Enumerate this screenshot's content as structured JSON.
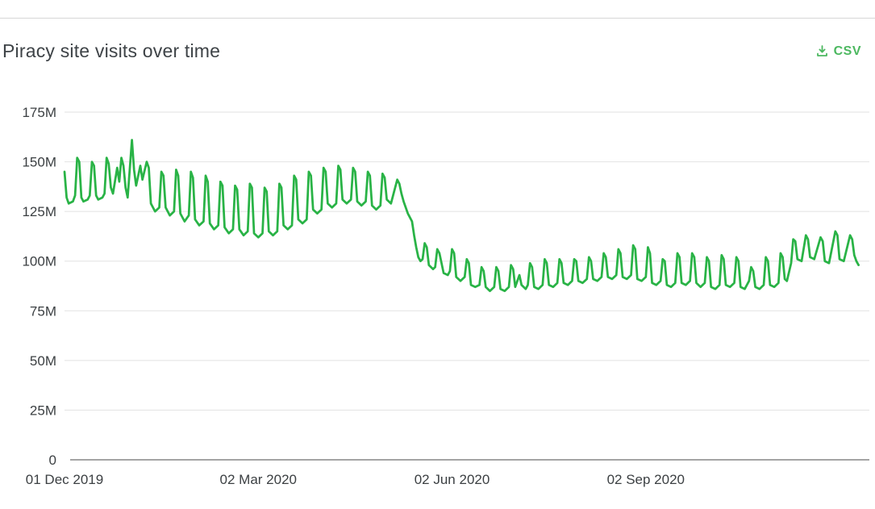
{
  "header": {
    "title": "Piracy site visits over time",
    "csv_label": "CSV",
    "csv_icon": "download-icon"
  },
  "colors": {
    "line": "#29b346",
    "csv_link": "#4cb860",
    "grid": "#e2e2e2",
    "axis": "#4a4a4a",
    "tick_text": "#3c4043",
    "title_text": "#3e4347",
    "top_border": "#d6d6d6",
    "background": "#ffffff"
  },
  "chart_data": {
    "type": "line",
    "title": "Piracy site visits over time",
    "xlabel": "",
    "ylabel": "",
    "value_unit": "millions of visits",
    "x_unit": "days since 01 Dec 2019",
    "ylim": [
      0,
      175
    ],
    "xlim_days": [
      0,
      381
    ],
    "grid": true,
    "legend": "none",
    "yticks": [
      {
        "value": 0,
        "label": "0"
      },
      {
        "value": 25,
        "label": "25M"
      },
      {
        "value": 50,
        "label": "50M"
      },
      {
        "value": 75,
        "label": "75M"
      },
      {
        "value": 100,
        "label": "100M"
      },
      {
        "value": 125,
        "label": "125M"
      },
      {
        "value": 150,
        "label": "150M"
      },
      {
        "value": 175,
        "label": "175M"
      }
    ],
    "xticks": [
      {
        "day": 0,
        "label": "01 Dec 2019"
      },
      {
        "day": 92,
        "label": "02 Mar 2020"
      },
      {
        "day": 184,
        "label": "02 Jun 2020"
      },
      {
        "day": 276,
        "label": "02 Sep 2020"
      }
    ],
    "series": [
      {
        "name": "Piracy site visits",
        "color": "#29b346",
        "points": [
          [
            0,
            145
          ],
          [
            1,
            132
          ],
          [
            2,
            129
          ],
          [
            4,
            130
          ],
          [
            5,
            133
          ],
          [
            6,
            152
          ],
          [
            7,
            150
          ],
          [
            8,
            132
          ],
          [
            9,
            130
          ],
          [
            11,
            131
          ],
          [
            12,
            133
          ],
          [
            13,
            150
          ],
          [
            14,
            148
          ],
          [
            15,
            133
          ],
          [
            16,
            131
          ],
          [
            18,
            132
          ],
          [
            19,
            134
          ],
          [
            20,
            152
          ],
          [
            21,
            149
          ],
          [
            22,
            137
          ],
          [
            23,
            134
          ],
          [
            25,
            147
          ],
          [
            26,
            140
          ],
          [
            27,
            152
          ],
          [
            28,
            148
          ],
          [
            29,
            137
          ],
          [
            30,
            132
          ],
          [
            32,
            161
          ],
          [
            33,
            146
          ],
          [
            34,
            138
          ],
          [
            36,
            148
          ],
          [
            37,
            141
          ],
          [
            39,
            150
          ],
          [
            40,
            147
          ],
          [
            41,
            129
          ],
          [
            43,
            125
          ],
          [
            45,
            127
          ],
          [
            46,
            145
          ],
          [
            47,
            143
          ],
          [
            48,
            127
          ],
          [
            50,
            123
          ],
          [
            52,
            125
          ],
          [
            53,
            146
          ],
          [
            54,
            143
          ],
          [
            55,
            124
          ],
          [
            57,
            120
          ],
          [
            59,
            123
          ],
          [
            60,
            145
          ],
          [
            61,
            142
          ],
          [
            62,
            121
          ],
          [
            64,
            118
          ],
          [
            66,
            120
          ],
          [
            67,
            143
          ],
          [
            68,
            140
          ],
          [
            69,
            119
          ],
          [
            71,
            116
          ],
          [
            73,
            118
          ],
          [
            74,
            140
          ],
          [
            75,
            138
          ],
          [
            76,
            117
          ],
          [
            78,
            114
          ],
          [
            80,
            116
          ],
          [
            81,
            138
          ],
          [
            82,
            136
          ],
          [
            83,
            116
          ],
          [
            85,
            113
          ],
          [
            87,
            115
          ],
          [
            88,
            139
          ],
          [
            89,
            137
          ],
          [
            90,
            114
          ],
          [
            92,
            112
          ],
          [
            94,
            114
          ],
          [
            95,
            137
          ],
          [
            96,
            135
          ],
          [
            97,
            115
          ],
          [
            99,
            113
          ],
          [
            101,
            115
          ],
          [
            102,
            139
          ],
          [
            103,
            137
          ],
          [
            104,
            118
          ],
          [
            106,
            116
          ],
          [
            108,
            118
          ],
          [
            109,
            143
          ],
          [
            110,
            141
          ],
          [
            111,
            121
          ],
          [
            113,
            119
          ],
          [
            115,
            121
          ],
          [
            116,
            145
          ],
          [
            117,
            143
          ],
          [
            118,
            126
          ],
          [
            120,
            124
          ],
          [
            122,
            126
          ],
          [
            123,
            147
          ],
          [
            124,
            145
          ],
          [
            125,
            129
          ],
          [
            127,
            127
          ],
          [
            129,
            129
          ],
          [
            130,
            148
          ],
          [
            131,
            146
          ],
          [
            132,
            131
          ],
          [
            134,
            129
          ],
          [
            136,
            131
          ],
          [
            137,
            147
          ],
          [
            138,
            145
          ],
          [
            139,
            130
          ],
          [
            141,
            128
          ],
          [
            143,
            130
          ],
          [
            144,
            145
          ],
          [
            145,
            143
          ],
          [
            146,
            128
          ],
          [
            148,
            126
          ],
          [
            150,
            128
          ],
          [
            151,
            144
          ],
          [
            152,
            142
          ],
          [
            153,
            131
          ],
          [
            155,
            129
          ],
          [
            156,
            133
          ],
          [
            158,
            141
          ],
          [
            159,
            139
          ],
          [
            160,
            134
          ],
          [
            161,
            130
          ],
          [
            163,
            124
          ],
          [
            165,
            120
          ],
          [
            166,
            113
          ],
          [
            167,
            107
          ],
          [
            168,
            102
          ],
          [
            169,
            100
          ],
          [
            170,
            101
          ],
          [
            171,
            109
          ],
          [
            172,
            107
          ],
          [
            173,
            98
          ],
          [
            175,
            96
          ],
          [
            176,
            97
          ],
          [
            177,
            106
          ],
          [
            178,
            104
          ],
          [
            180,
            94
          ],
          [
            182,
            93
          ],
          [
            183,
            95
          ],
          [
            184,
            106
          ],
          [
            185,
            104
          ],
          [
            186,
            92
          ],
          [
            188,
            90
          ],
          [
            190,
            92
          ],
          [
            191,
            101
          ],
          [
            192,
            99
          ],
          [
            193,
            88
          ],
          [
            195,
            87
          ],
          [
            197,
            88
          ],
          [
            198,
            97
          ],
          [
            199,
            95
          ],
          [
            200,
            87
          ],
          [
            202,
            85
          ],
          [
            204,
            87
          ],
          [
            205,
            97
          ],
          [
            206,
            95
          ],
          [
            207,
            86
          ],
          [
            209,
            85
          ],
          [
            211,
            87
          ],
          [
            212,
            98
          ],
          [
            213,
            96
          ],
          [
            214,
            87
          ],
          [
            216,
            93
          ],
          [
            217,
            88
          ],
          [
            219,
            86
          ],
          [
            220,
            88
          ],
          [
            221,
            99
          ],
          [
            222,
            97
          ],
          [
            223,
            87
          ],
          [
            225,
            86
          ],
          [
            227,
            88
          ],
          [
            228,
            101
          ],
          [
            229,
            99
          ],
          [
            230,
            88
          ],
          [
            232,
            87
          ],
          [
            234,
            89
          ],
          [
            235,
            101
          ],
          [
            236,
            99
          ],
          [
            237,
            89
          ],
          [
            239,
            88
          ],
          [
            241,
            90
          ],
          [
            242,
            101
          ],
          [
            243,
            100
          ],
          [
            244,
            90
          ],
          [
            246,
            89
          ],
          [
            248,
            91
          ],
          [
            249,
            102
          ],
          [
            250,
            100
          ],
          [
            251,
            91
          ],
          [
            253,
            90
          ],
          [
            255,
            92
          ],
          [
            256,
            104
          ],
          [
            257,
            102
          ],
          [
            258,
            92
          ],
          [
            260,
            91
          ],
          [
            262,
            93
          ],
          [
            263,
            106
          ],
          [
            264,
            104
          ],
          [
            265,
            92
          ],
          [
            267,
            91
          ],
          [
            269,
            93
          ],
          [
            270,
            108
          ],
          [
            271,
            106
          ],
          [
            272,
            91
          ],
          [
            274,
            90
          ],
          [
            276,
            92
          ],
          [
            277,
            107
          ],
          [
            278,
            104
          ],
          [
            279,
            89
          ],
          [
            281,
            88
          ],
          [
            283,
            90
          ],
          [
            284,
            101
          ],
          [
            285,
            100
          ],
          [
            286,
            88
          ],
          [
            288,
            87
          ],
          [
            290,
            89
          ],
          [
            291,
            104
          ],
          [
            292,
            102
          ],
          [
            293,
            89
          ],
          [
            295,
            88
          ],
          [
            297,
            90
          ],
          [
            298,
            104
          ],
          [
            299,
            102
          ],
          [
            300,
            89
          ],
          [
            302,
            87
          ],
          [
            304,
            89
          ],
          [
            305,
            102
          ],
          [
            306,
            100
          ],
          [
            307,
            87
          ],
          [
            309,
            86
          ],
          [
            311,
            88
          ],
          [
            312,
            103
          ],
          [
            313,
            101
          ],
          [
            314,
            88
          ],
          [
            316,
            87
          ],
          [
            318,
            89
          ],
          [
            319,
            102
          ],
          [
            320,
            100
          ],
          [
            321,
            87
          ],
          [
            323,
            86
          ],
          [
            325,
            90
          ],
          [
            326,
            97
          ],
          [
            327,
            95
          ],
          [
            328,
            87
          ],
          [
            330,
            86
          ],
          [
            332,
            88
          ],
          [
            333,
            102
          ],
          [
            334,
            100
          ],
          [
            335,
            88
          ],
          [
            337,
            87
          ],
          [
            339,
            89
          ],
          [
            340,
            104
          ],
          [
            341,
            102
          ],
          [
            342,
            91
          ],
          [
            343,
            90
          ],
          [
            345,
            99
          ],
          [
            346,
            111
          ],
          [
            347,
            110
          ],
          [
            348,
            101
          ],
          [
            350,
            100
          ],
          [
            352,
            113
          ],
          [
            353,
            111
          ],
          [
            354,
            102
          ],
          [
            356,
            101
          ],
          [
            359,
            112
          ],
          [
            360,
            110
          ],
          [
            361,
            100
          ],
          [
            363,
            99
          ],
          [
            366,
            115
          ],
          [
            367,
            113
          ],
          [
            368,
            101
          ],
          [
            370,
            100
          ],
          [
            373,
            113
          ],
          [
            374,
            111
          ],
          [
            375,
            103
          ],
          [
            376,
            100
          ],
          [
            377,
            98
          ]
        ]
      }
    ]
  }
}
